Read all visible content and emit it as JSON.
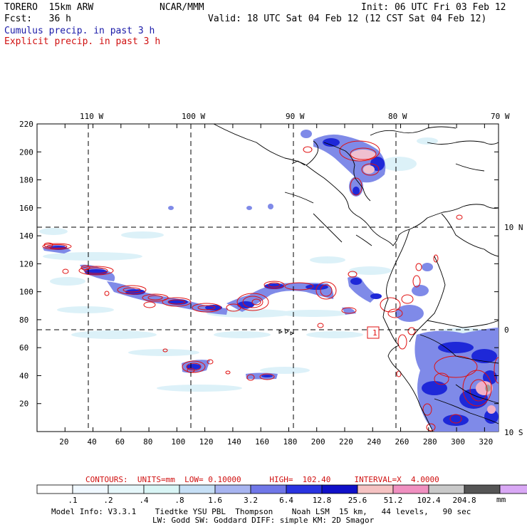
{
  "header": {
    "model": "TORERO  15km ARW",
    "center": "NCAR/MMM",
    "init": "Init: 06 UTC Fri 03 Feb 12",
    "fcst": "Fcst:   36 h",
    "valid": "Valid: 18 UTC Sat 04 Feb 12 (12 CST Sat 04 Feb 12)",
    "cumulus": "Cumulus precip. in past 3 h",
    "explicit": "Explicit precip. in past 3 h"
  },
  "axes": {
    "lon_labels": [
      "110 W",
      "100 W",
      "90 W",
      "80 W",
      "70 W"
    ],
    "lat_labels": [
      "10 N",
      "0",
      "10 S"
    ],
    "x_ticks": [
      "20",
      "40",
      "60",
      "80",
      "100",
      "120",
      "140",
      "160",
      "180",
      "200",
      "220",
      "240",
      "260",
      "280",
      "300",
      "320"
    ],
    "y_ticks": [
      "20",
      "40",
      "60",
      "80",
      "100",
      "120",
      "140",
      "160",
      "180",
      "200",
      "220"
    ]
  },
  "contours": {
    "label": "CONTOURS:",
    "units": "UNITS=mm",
    "low": "LOW= 0.10000",
    "high": "HIGH=  102.40",
    "interval": "INTERVAL=X  4.0000"
  },
  "legend": {
    "values": [
      ".1",
      ".2",
      ".4",
      ".8",
      "1.6",
      "3.2",
      "6.4",
      "12.8",
      "25.6",
      "51.2",
      "102.4",
      "204.8"
    ],
    "unit": "mm",
    "colors": [
      "#ffffff",
      "#f0f8ff",
      "#e6f7fa",
      "#d9f5f5",
      "#c6dff5",
      "#a7b4f0",
      "#7077e8",
      "#2a33e0",
      "#1010c8",
      "#f5c2c2",
      "#f090c0",
      "#c9c9c9",
      "#555555",
      "#d9a8f5"
    ]
  },
  "footer": {
    "line1": "Model Info: V3.3.1    Tiedtke YSU PBL  Thompson    Noah LSM  15 km,   44 levels,   90 sec",
    "line2": "LW: Godd SW: Goddard DIFF: simple KM: 2D Smagor"
  },
  "annotations": {
    "box_label": "1"
  }
}
